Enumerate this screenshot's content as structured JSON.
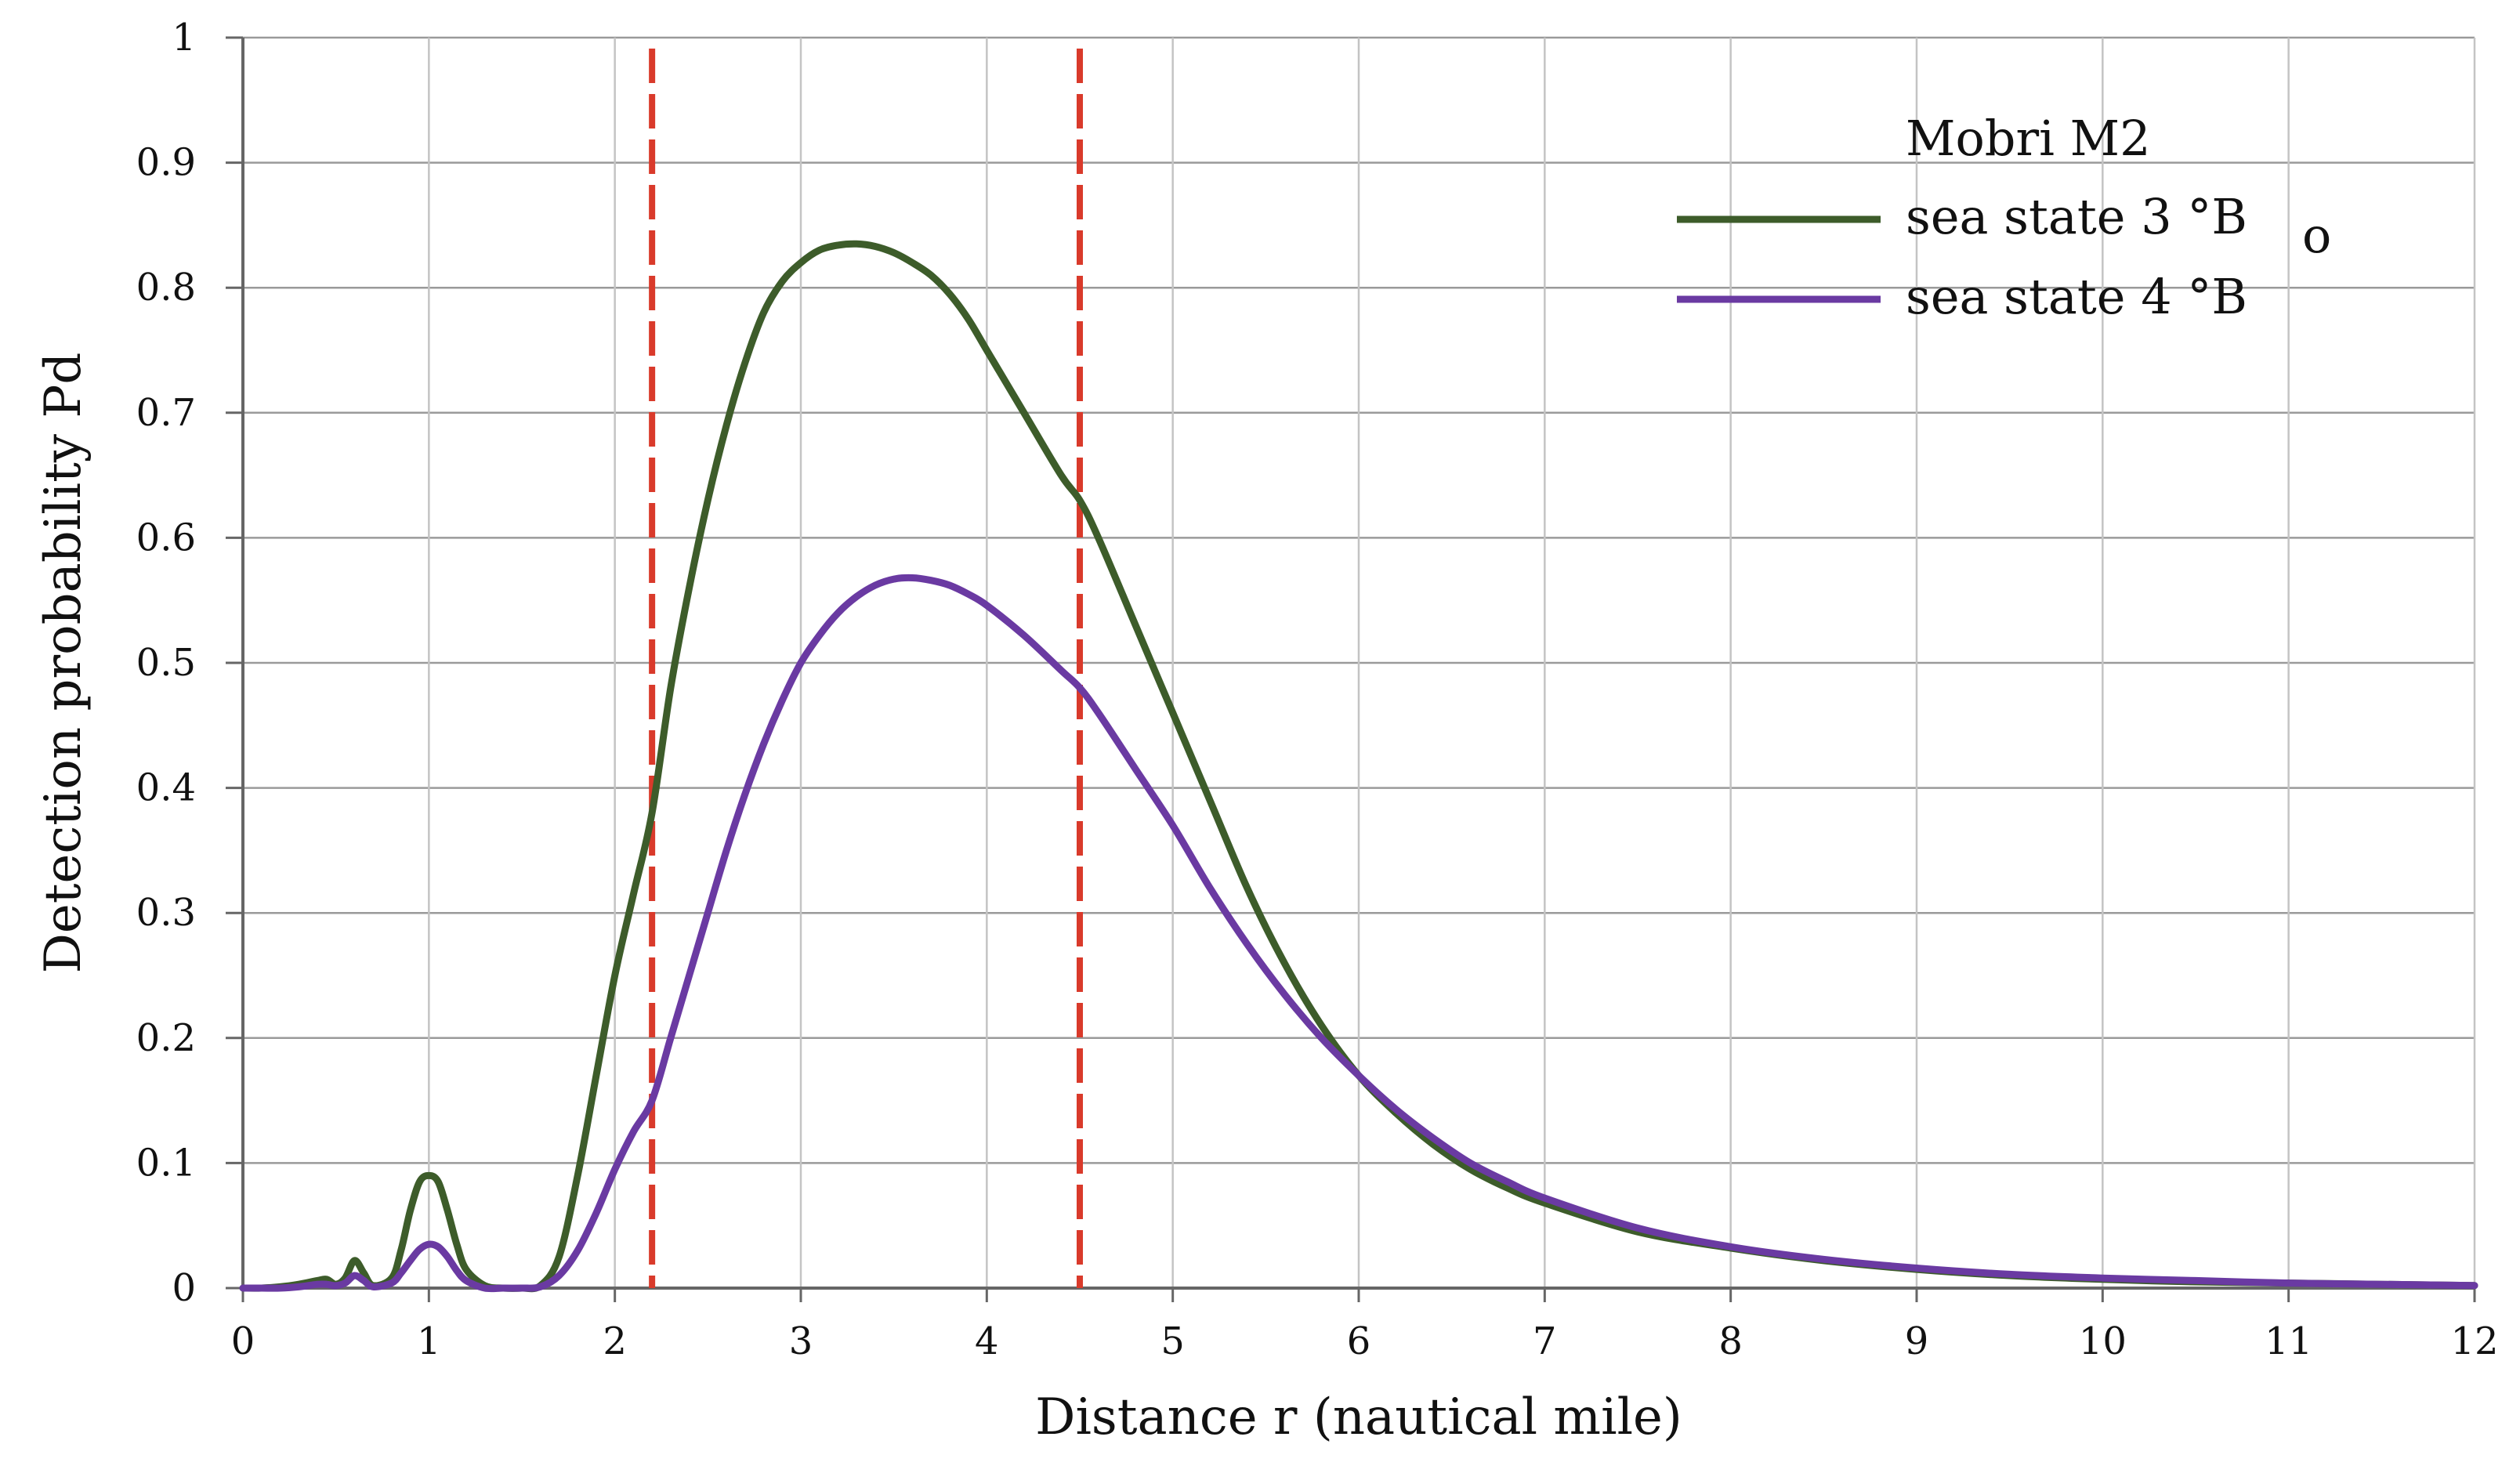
{
  "chart_data": {
    "type": "line",
    "title": "",
    "xlabel": "Distance r (nautical mile)",
    "ylabel": "Detection probability Pd",
    "xlim": [
      0,
      12
    ],
    "ylim": [
      0,
      1
    ],
    "x_ticks": [
      0,
      1,
      2,
      3,
      4,
      5,
      6,
      7,
      8,
      9,
      10,
      11,
      12
    ],
    "x_tick_labels": [
      "0",
      "1",
      "2",
      "3",
      "4",
      "5",
      "6",
      "7",
      "8",
      "9",
      "10",
      "11",
      "12"
    ],
    "y_ticks": [
      0,
      0.1,
      0.2,
      0.3,
      0.4,
      0.5,
      0.6,
      0.7,
      0.8,
      0.9,
      1
    ],
    "y_tick_labels": [
      "0",
      "0.1",
      "0.2",
      "0.3",
      "0.4",
      "0.5",
      "0.6",
      "0.7",
      "0.8",
      "0.9",
      "1"
    ],
    "grid": true,
    "legend": {
      "title": "Mobri M2",
      "position": "top-right",
      "entries": [
        "sea state 3 °B",
        "sea state 4 °B"
      ],
      "stray_mark": "o"
    },
    "series": [
      {
        "name": "sea state 3 °B",
        "color": "#3d5c2a",
        "x": [
          0,
          0.1,
          0.2,
          0.3,
          0.4,
          0.45,
          0.5,
          0.55,
          0.6,
          0.65,
          0.7,
          0.8,
          0.85,
          0.9,
          0.95,
          1.0,
          1.05,
          1.1,
          1.15,
          1.2,
          1.3,
          1.4,
          1.5,
          1.6,
          1.7,
          1.8,
          1.9,
          2.0,
          2.1,
          2.2,
          2.3,
          2.4,
          2.5,
          2.6,
          2.7,
          2.8,
          2.9,
          3.0,
          3.1,
          3.2,
          3.3,
          3.4,
          3.5,
          3.6,
          3.7,
          3.8,
          3.9,
          4.0,
          4.2,
          4.4,
          4.5,
          4.6,
          4.8,
          5.0,
          5.2,
          5.4,
          5.6,
          5.8,
          6.0,
          6.2,
          6.4,
          6.6,
          6.8,
          7.0,
          7.5,
          8.0,
          8.5,
          9.0,
          9.5,
          10.0,
          10.5,
          11.0,
          11.5,
          12.0
        ],
        "y": [
          0,
          0,
          0.001,
          0.003,
          0.006,
          0.007,
          0.003,
          0.008,
          0.022,
          0.012,
          0.002,
          0.008,
          0.03,
          0.062,
          0.085,
          0.09,
          0.085,
          0.062,
          0.035,
          0.015,
          0.002,
          0,
          0,
          0.002,
          0.025,
          0.09,
          0.17,
          0.25,
          0.315,
          0.38,
          0.48,
          0.56,
          0.63,
          0.69,
          0.74,
          0.78,
          0.805,
          0.82,
          0.83,
          0.834,
          0.835,
          0.833,
          0.828,
          0.82,
          0.81,
          0.795,
          0.775,
          0.75,
          0.7,
          0.65,
          0.63,
          0.6,
          0.53,
          0.46,
          0.39,
          0.32,
          0.26,
          0.21,
          0.17,
          0.14,
          0.115,
          0.095,
          0.08,
          0.068,
          0.045,
          0.032,
          0.022,
          0.015,
          0.01,
          0.007,
          0.005,
          0.004,
          0.003,
          0.002
        ]
      },
      {
        "name": "sea state 4 °B",
        "color": "#6a3aa2",
        "x": [
          0,
          0.1,
          0.2,
          0.3,
          0.4,
          0.45,
          0.5,
          0.55,
          0.6,
          0.65,
          0.7,
          0.8,
          0.85,
          0.9,
          0.95,
          1.0,
          1.05,
          1.1,
          1.15,
          1.2,
          1.3,
          1.4,
          1.5,
          1.6,
          1.7,
          1.8,
          1.9,
          2.0,
          2.1,
          2.2,
          2.3,
          2.4,
          2.5,
          2.6,
          2.7,
          2.8,
          2.9,
          3.0,
          3.1,
          3.2,
          3.3,
          3.4,
          3.5,
          3.6,
          3.7,
          3.8,
          3.9,
          4.0,
          4.2,
          4.4,
          4.5,
          4.6,
          4.8,
          5.0,
          5.2,
          5.4,
          5.6,
          5.8,
          6.0,
          6.2,
          6.4,
          6.6,
          6.8,
          7.0,
          7.5,
          8.0,
          8.5,
          9.0,
          9.5,
          10.0,
          10.5,
          11.0,
          11.5,
          12.0
        ],
        "y": [
          0,
          0,
          0,
          0.001,
          0.003,
          0.003,
          0.002,
          0.004,
          0.01,
          0.006,
          0.001,
          0.004,
          0.012,
          0.022,
          0.031,
          0.035,
          0.033,
          0.025,
          0.014,
          0.006,
          0,
          0,
          0,
          0.001,
          0.01,
          0.03,
          0.06,
          0.095,
          0.125,
          0.15,
          0.2,
          0.25,
          0.3,
          0.35,
          0.395,
          0.435,
          0.47,
          0.5,
          0.522,
          0.54,
          0.553,
          0.562,
          0.567,
          0.568,
          0.566,
          0.562,
          0.555,
          0.546,
          0.522,
          0.494,
          0.48,
          0.46,
          0.415,
          0.37,
          0.32,
          0.275,
          0.235,
          0.2,
          0.17,
          0.143,
          0.12,
          0.1,
          0.085,
          0.072,
          0.048,
          0.033,
          0.023,
          0.016,
          0.011,
          0.008,
          0.006,
          0.004,
          0.003,
          0.002
        ]
      }
    ],
    "reference_lines": {
      "color": "#d93a2b",
      "style": "dashed",
      "x": [
        2.2,
        4.5
      ]
    }
  }
}
